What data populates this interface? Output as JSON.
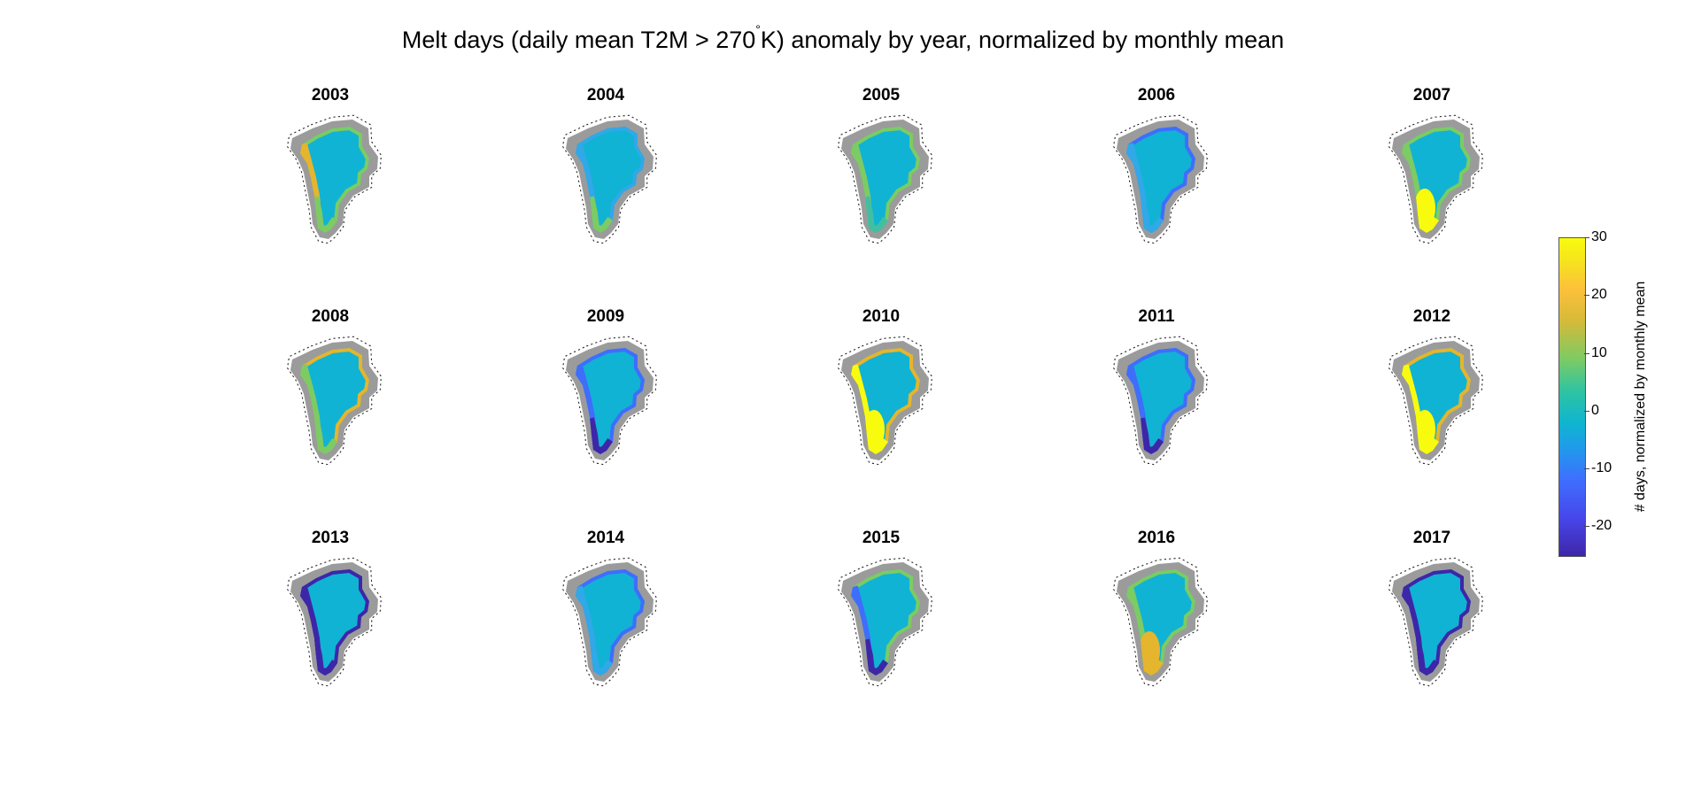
{
  "title": {
    "before": "Melt days (daily mean T2M > 270",
    "degree": "°",
    "after": "K) anomaly by year, normalized by monthly mean"
  },
  "panels": [
    {
      "year": "2003",
      "anomaly": "mixed-positive"
    },
    {
      "year": "2004",
      "anomaly": "mild-mixed"
    },
    {
      "year": "2005",
      "anomaly": "mild-positive"
    },
    {
      "year": "2006",
      "anomaly": "mild-negative"
    },
    {
      "year": "2007",
      "anomaly": "strong-positive-southwest"
    },
    {
      "year": "2008",
      "anomaly": "positive-north"
    },
    {
      "year": "2009",
      "anomaly": "negative"
    },
    {
      "year": "2010",
      "anomaly": "strong-positive-west"
    },
    {
      "year": "2011",
      "anomaly": "negative"
    },
    {
      "year": "2012",
      "anomaly": "very-strong-positive"
    },
    {
      "year": "2013",
      "anomaly": "strong-negative"
    },
    {
      "year": "2014",
      "anomaly": "mild-negative"
    },
    {
      "year": "2015",
      "anomaly": "negative-southwest"
    },
    {
      "year": "2016",
      "anomaly": "positive-southwest"
    },
    {
      "year": "2017",
      "anomaly": "strong-negative"
    }
  ],
  "colorbar": {
    "label": "# days, normalized by monthly mean",
    "min": -25,
    "max": 30,
    "ticks": [
      {
        "value": 30,
        "label": "30"
      },
      {
        "value": 20,
        "label": "20"
      },
      {
        "value": 10,
        "label": "10"
      },
      {
        "value": 0,
        "label": "0"
      },
      {
        "value": -10,
        "label": "-10"
      },
      {
        "value": -20,
        "label": "-20"
      }
    ]
  },
  "colors": {
    "land": "#9b9b9b",
    "ice_neutral": "#10b3d4",
    "strong_negative": "#3e26a8",
    "negative": "#3f6dfc",
    "positive": "#7dcb63",
    "strong_positive": "#f9fb0e",
    "warm": "#e5b52d"
  }
}
